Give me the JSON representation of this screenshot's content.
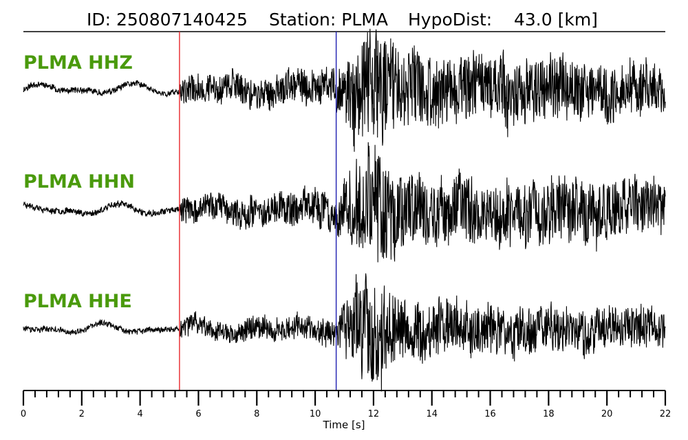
{
  "header": {
    "id_text": "ID: 250807140425",
    "station_text": "Station: PLMA",
    "distance_text": "HypoDist:    43.0 [km]"
  },
  "colors": {
    "label": "#4a9a0c",
    "trace": "#000000",
    "p_pick": "#e8262b",
    "s_pick": "#1d1db0",
    "axis": "#000000"
  },
  "chart_data": {
    "type": "line",
    "title": "ID: 250807140425   Station: PLMA   HypoDist:    43.0 [km]",
    "xlabel": "Time [s]",
    "ylabel": "",
    "xlim": [
      0,
      22
    ],
    "x_major_ticks": [
      0,
      2,
      4,
      6,
      8,
      10,
      12,
      14,
      16,
      18,
      20,
      22
    ],
    "x_minor_step": 0.4,
    "grid": false,
    "legend": "none",
    "picks": [
      {
        "phase": "P",
        "time": 5.35,
        "color": "#e8262b"
      },
      {
        "phase": "S",
        "time": 10.72,
        "color": "#1d1db0"
      }
    ],
    "series": [
      {
        "name": "PLMA HHZ",
        "description_envelope": {
          "time": [
            0,
            5.35,
            5.4,
            8.0,
            10.7,
            11.5,
            12.1,
            13.0,
            16.0,
            18.0,
            22.0
          ],
          "amplitude": [
            0.05,
            0.05,
            0.22,
            0.25,
            0.3,
            0.85,
            1.0,
            0.65,
            0.55,
            0.5,
            0.4
          ]
        }
      },
      {
        "name": "PLMA HHN",
        "description_envelope": {
          "time": [
            0,
            5.35,
            5.4,
            8.0,
            10.7,
            11.5,
            12.1,
            13.0,
            16.0,
            18.0,
            22.0
          ],
          "amplitude": [
            0.05,
            0.05,
            0.2,
            0.25,
            0.3,
            0.8,
            1.0,
            0.6,
            0.5,
            0.55,
            0.45
          ]
        }
      },
      {
        "name": "PLMA HHE",
        "description_envelope": {
          "time": [
            0,
            5.35,
            5.4,
            8.0,
            10.7,
            11.5,
            12.1,
            13.0,
            16.0,
            18.0,
            22.0
          ],
          "amplitude": [
            0.05,
            0.05,
            0.18,
            0.2,
            0.25,
            0.85,
            1.0,
            0.5,
            0.45,
            0.4,
            0.35
          ]
        }
      }
    ]
  }
}
